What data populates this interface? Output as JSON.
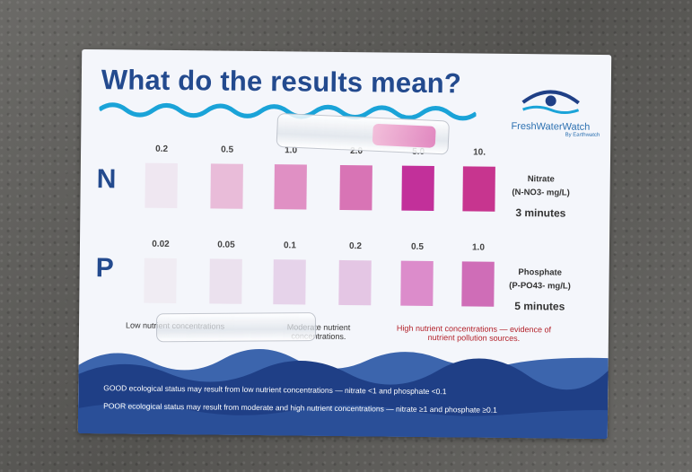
{
  "card": {
    "title": "What do the results mean?",
    "brand": {
      "name": "FreshWaterWatch",
      "by": "By Earthwatch"
    }
  },
  "nitrate": {
    "letter": "N",
    "name": "Nitrate",
    "unit": "(N-NO3- mg/L)",
    "time": "3 minutes",
    "values": [
      "0.2",
      "0.5",
      "1.0",
      "2.0",
      "5.0",
      "10."
    ],
    "colors": [
      "#efe7f1",
      "#e9bcd9",
      "#e090c4",
      "#d874b5",
      "#c2309a",
      "#c7358f"
    ]
  },
  "phosphate": {
    "letter": "P",
    "name": "Phosphate",
    "unit": "(P-PO43- mg/L)",
    "time": "5 minutes",
    "values": [
      "0.02",
      "0.05",
      "0.1",
      "0.2",
      "0.5",
      "1.0"
    ],
    "colors": [
      "#f0ecf3",
      "#ebe1ee",
      "#e6d3ea",
      "#e4c6e4",
      "#dc8ccb",
      "#cf6db7"
    ]
  },
  "legend": {
    "low": "Low nutrient concentrations",
    "moderate": "Moderate nutrient concentrations.",
    "high": "High nutrient concentrations — evidence of nutrient pollution sources."
  },
  "status": {
    "good": "GOOD ecological status may result from low nutrient concentrations — nitrate <1 and phosphate <0.1",
    "poor": "POOR ecological status may result from moderate and high nutrient concentrations — nitrate ≥1 and phosphate ≥0.1"
  },
  "colors": {
    "navy": "#234a8e",
    "wave_dark": "#1f3f86",
    "wave_mid": "#3c65ad",
    "high_red": "#b3212a"
  },
  "icons": [
    "wave-icon",
    "eye-logo-icon"
  ]
}
